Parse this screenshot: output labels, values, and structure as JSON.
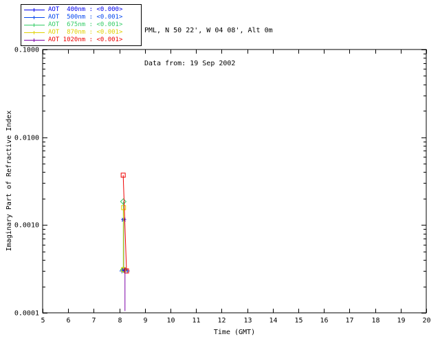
{
  "header": {
    "site_line": "PML, N 50 22', W 04 08', Alt 0m",
    "date_line": "Data from: 19 Sep 2002"
  },
  "legend": {
    "items": [
      {
        "label": "AOT  400nm : <0.000>",
        "line_color": "#0000ee",
        "text_color": "#0000ee",
        "marker": "asterisk"
      },
      {
        "label": "AOT  500nm : <0.001>",
        "line_color": "#0044ee",
        "text_color": "#0044ee",
        "marker": "plus"
      },
      {
        "label": "AOT  675nm : <0.001>",
        "line_color": "#33cc66",
        "text_color": "#33cc66",
        "marker": "diamond"
      },
      {
        "label": "AOT  870nm : <0.001>",
        "line_color": "#e0d000",
        "text_color": "#e0d000",
        "marker": "square"
      },
      {
        "label": "AOT 1020nm : <0.001>",
        "line_color": "#7a00a8",
        "text_color": "#ee0000",
        "marker": "square"
      }
    ]
  },
  "chart_data": {
    "type": "scatter",
    "title": "",
    "xlabel": "Time (GMT)",
    "ylabel": "Imaginary Part of Refractive Index",
    "xlim": [
      5,
      20
    ],
    "ylim": [
      0.0001,
      0.1
    ],
    "y_scale": "log",
    "grid": false,
    "legend_position": "top-left",
    "x_ticks": [
      5,
      6,
      7,
      8,
      9,
      10,
      11,
      12,
      13,
      14,
      15,
      16,
      17,
      18,
      19,
      20
    ],
    "y_ticks": [
      {
        "label": "0.1000",
        "value": 0.1
      },
      {
        "label": "0.0100",
        "value": 0.01
      },
      {
        "label": "0.0010",
        "value": 0.001
      },
      {
        "label": "0.0001",
        "value": 0.0001
      }
    ],
    "series": [
      {
        "name": "AOT 400nm",
        "color": "#0000ee",
        "marker": "asterisk",
        "line": true,
        "points": [
          [
            8.17,
            0.00115
          ],
          [
            8.17,
            0.00031
          ]
        ]
      },
      {
        "name": "AOT 500nm",
        "color": "#0044ee",
        "marker": "plus",
        "line": false,
        "points": [
          [
            8.1,
            0.0003
          ],
          [
            8.31,
            0.0003
          ]
        ]
      },
      {
        "name": "AOT 675nm",
        "color": "#33cc66",
        "marker": "diamond",
        "line": true,
        "points": [
          [
            8.155,
            0.00185
          ],
          [
            8.155,
            0.00031
          ]
        ]
      },
      {
        "name": "AOT 870nm",
        "color": "#e0d000",
        "marker": "square",
        "line": true,
        "points": [
          [
            8.165,
            0.00158
          ],
          [
            8.165,
            0.00031
          ]
        ]
      },
      {
        "name": "AOT 1020nm",
        "color": "#ee0000",
        "marker": "square",
        "line": true,
        "points": [
          [
            8.15,
            0.0037
          ],
          [
            8.28,
            0.0003
          ]
        ]
      },
      {
        "name": "uncertainty-bar",
        "color": "#7a00a8",
        "marker": "none",
        "line": true,
        "points": [
          [
            8.22,
            0.00033
          ],
          [
            8.22,
            0.000105
          ]
        ]
      }
    ]
  }
}
